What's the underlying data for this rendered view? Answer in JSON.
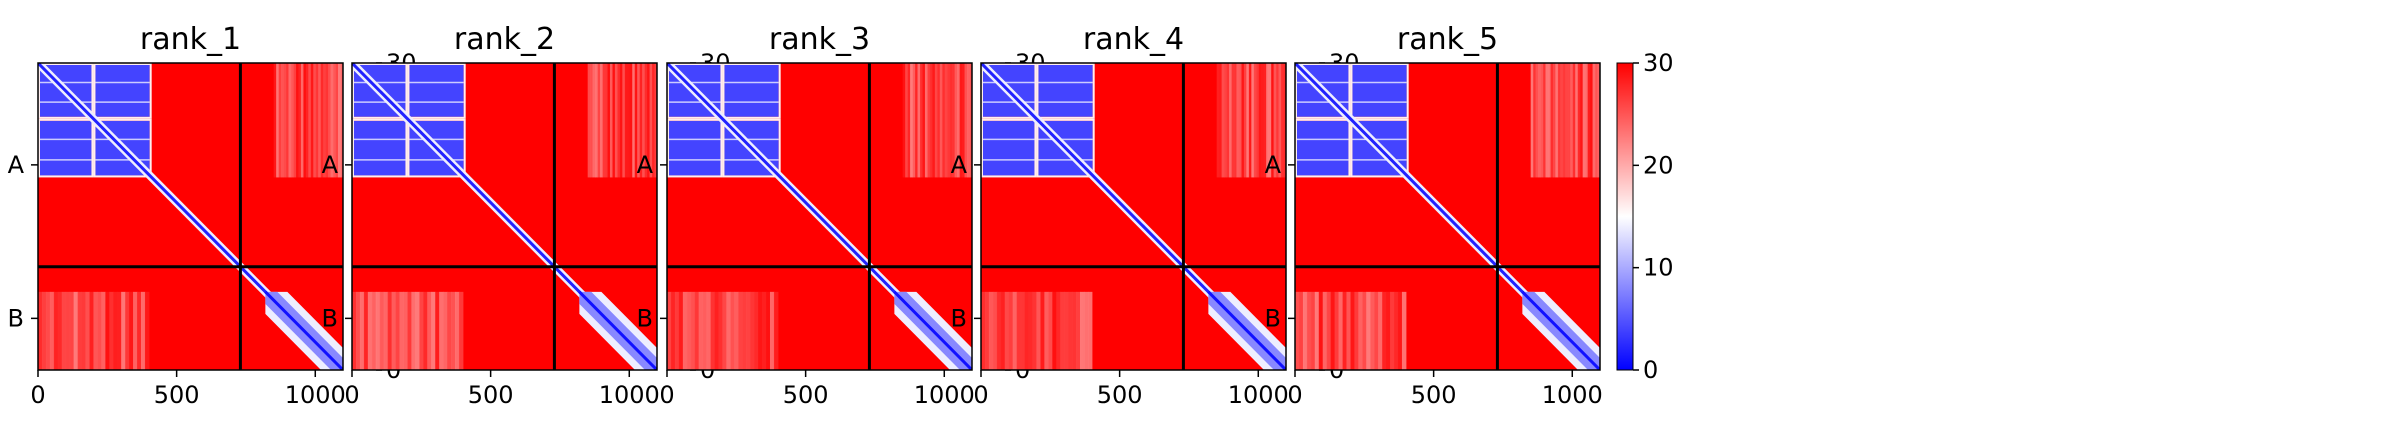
{
  "chart_data": {
    "type": "heatmap",
    "colormap": {
      "name": "bwr",
      "low_color": "#0000ff",
      "mid_color": "#ffffff",
      "high_color": "#ff0000"
    },
    "colorbar": {
      "range": [
        0,
        30
      ],
      "ticks": [
        "0",
        "10",
        "20",
        "30"
      ]
    },
    "x_axis": {
      "range": [
        0,
        1100
      ],
      "ticks": [
        0,
        500,
        1000
      ],
      "tick_labels": [
        "0",
        "500",
        "1000"
      ]
    },
    "y_axis": {
      "inverted": true,
      "category_labels": [
        "A",
        "B"
      ],
      "category_centers": [
        365,
        915
      ]
    },
    "chain_boundary": 730,
    "matrix_size": 1100,
    "panels": [
      {
        "title": "rank_1"
      },
      {
        "title": "rank_2"
      },
      {
        "title": "rank_3"
      },
      {
        "title": "rank_4"
      },
      {
        "title": "rank_5"
      }
    ],
    "structure": {
      "background_value": 30,
      "low_value_blocks": [
        {
          "x_range": [
            0,
            200
          ],
          "y_range": [
            0,
            200
          ]
        },
        {
          "x_range": [
            200,
            410
          ],
          "y_range": [
            0,
            200
          ]
        },
        {
          "x_range": [
            0,
            200
          ],
          "y_range": [
            200,
            410
          ]
        },
        {
          "x_range": [
            200,
            410
          ],
          "y_range": [
            200,
            410
          ]
        }
      ],
      "diagonal_band": {
        "start": 410,
        "end": 730,
        "value": 2
      },
      "chain_b_domain": {
        "range": [
          820,
          1100
        ],
        "value": 8
      },
      "faded_regions": [
        {
          "x_range": [
            850,
            1100
          ],
          "y_range": [
            0,
            410
          ],
          "value": 22
        },
        {
          "x_range": [
            0,
            400
          ],
          "y_range": [
            820,
            1100
          ],
          "value": 22
        }
      ]
    }
  }
}
